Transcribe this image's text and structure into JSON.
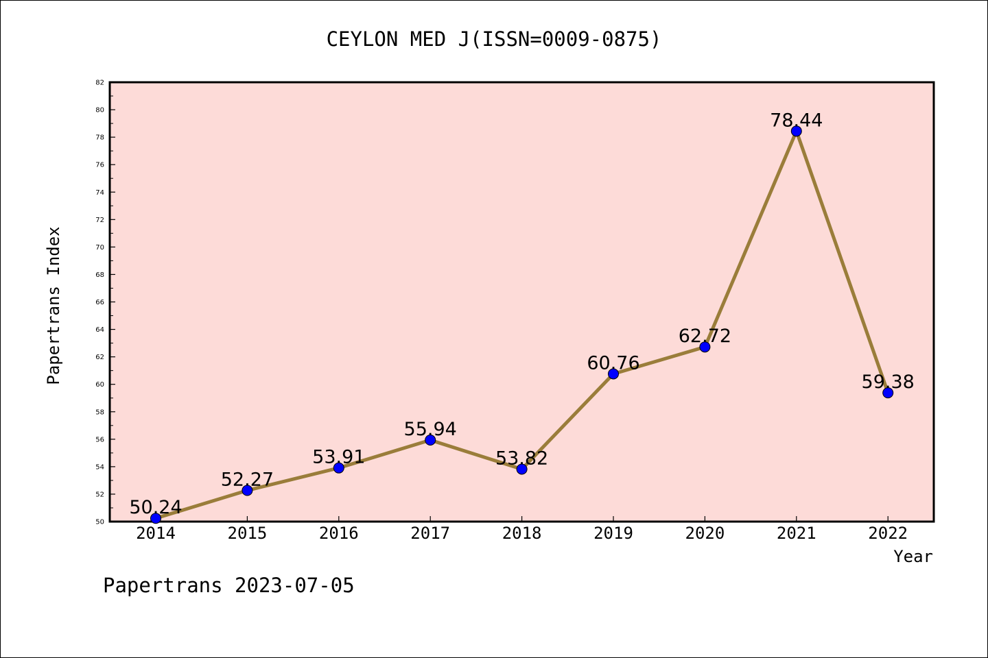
{
  "chart_data": {
    "type": "line",
    "title": "CEYLON MED J(ISSN=0009-0875)",
    "xlabel": "Year",
    "ylabel": "Papertrans Index",
    "footer": "Papertrans 2023-07-05",
    "categories": [
      "2014",
      "2015",
      "2016",
      "2017",
      "2018",
      "2019",
      "2020",
      "2021",
      "2022"
    ],
    "values": [
      50.24,
      52.27,
      53.91,
      55.94,
      53.82,
      60.76,
      62.72,
      78.44,
      59.38
    ],
    "labels": [
      "50.24",
      "52.27",
      "53.91",
      "55.94",
      "53.82",
      "60.76",
      "62.72",
      "78.44",
      "59.38"
    ],
    "ylim": [
      50,
      82
    ],
    "yticks": [
      "50",
      "52",
      "54",
      "56",
      "58",
      "60",
      "62",
      "64",
      "66",
      "68",
      "70",
      "72",
      "74",
      "76",
      "78",
      "80",
      "82"
    ],
    "grid": false,
    "colors": {
      "plot_background": "#fddbd8",
      "line": "#9a7d3a",
      "marker": "#0000ff"
    }
  }
}
